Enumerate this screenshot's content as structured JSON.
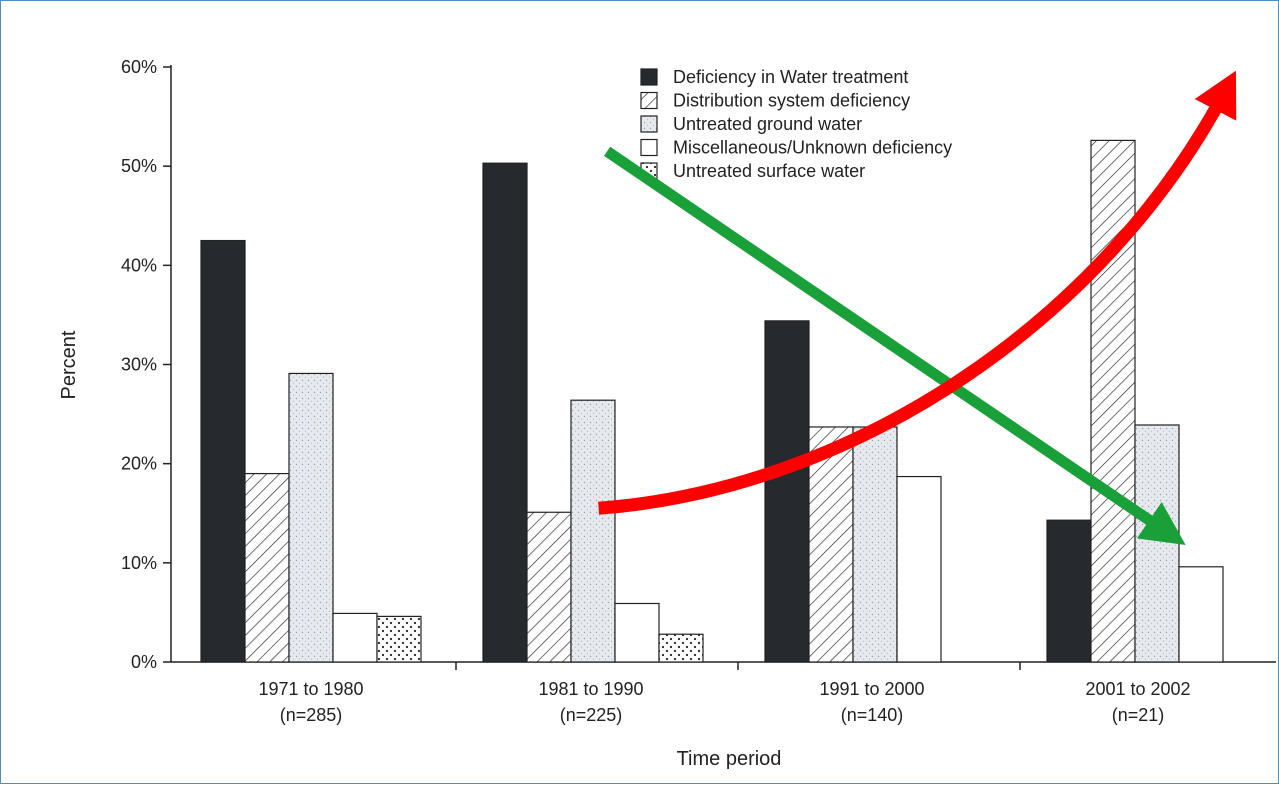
{
  "chart_data": {
    "type": "bar",
    "xlabel": "Time period",
    "ylabel": "Percent",
    "ylim": [
      0,
      60
    ],
    "yticks": [
      "0%",
      "10%",
      "20%",
      "30%",
      "40%",
      "50%",
      "60%"
    ],
    "categories": [
      {
        "line1": "1971 to 1980",
        "line2": "(n=285)"
      },
      {
        "line1": "1981 to 1990",
        "line2": "(n=225)"
      },
      {
        "line1": "1991 to 2000",
        "line2": "(n=140)"
      },
      {
        "line1": "2001 to 2002",
        "line2": "(n=21)"
      }
    ],
    "series": [
      {
        "name": "Deficiency in Water treatment",
        "pattern": "solid",
        "values": [
          42.5,
          50.3,
          34.4,
          14.3
        ]
      },
      {
        "name": "Distribution system deficiency",
        "pattern": "hatch",
        "values": [
          19,
          15.1,
          23.7,
          52.6
        ]
      },
      {
        "name": "Untreated ground water",
        "pattern": "stipple",
        "values": [
          29.1,
          26.4,
          23.7,
          23.9
        ]
      },
      {
        "name": "Miscellaneous/Unknown deficiency",
        "pattern": "empty",
        "values": [
          4.9,
          5.9,
          18.7,
          9.6
        ]
      },
      {
        "name": "Untreated surface water",
        "pattern": "dots",
        "values": [
          4.6,
          2.8,
          null,
          null
        ]
      }
    ],
    "legend_position": "top-right",
    "grid": false,
    "annotations": [
      {
        "name": "green-downward-arrow",
        "color": "#1aa038",
        "from": {
          "x": 1.05,
          "y": 51.5
        },
        "to": {
          "x": 3.05,
          "y": 12.8
        }
      },
      {
        "name": "red-upward-arrow",
        "color": "#ff0000",
        "from": {
          "x": 1.02,
          "y": 15.5
        },
        "to": {
          "x": 3.25,
          "y": 58
        }
      }
    ]
  }
}
